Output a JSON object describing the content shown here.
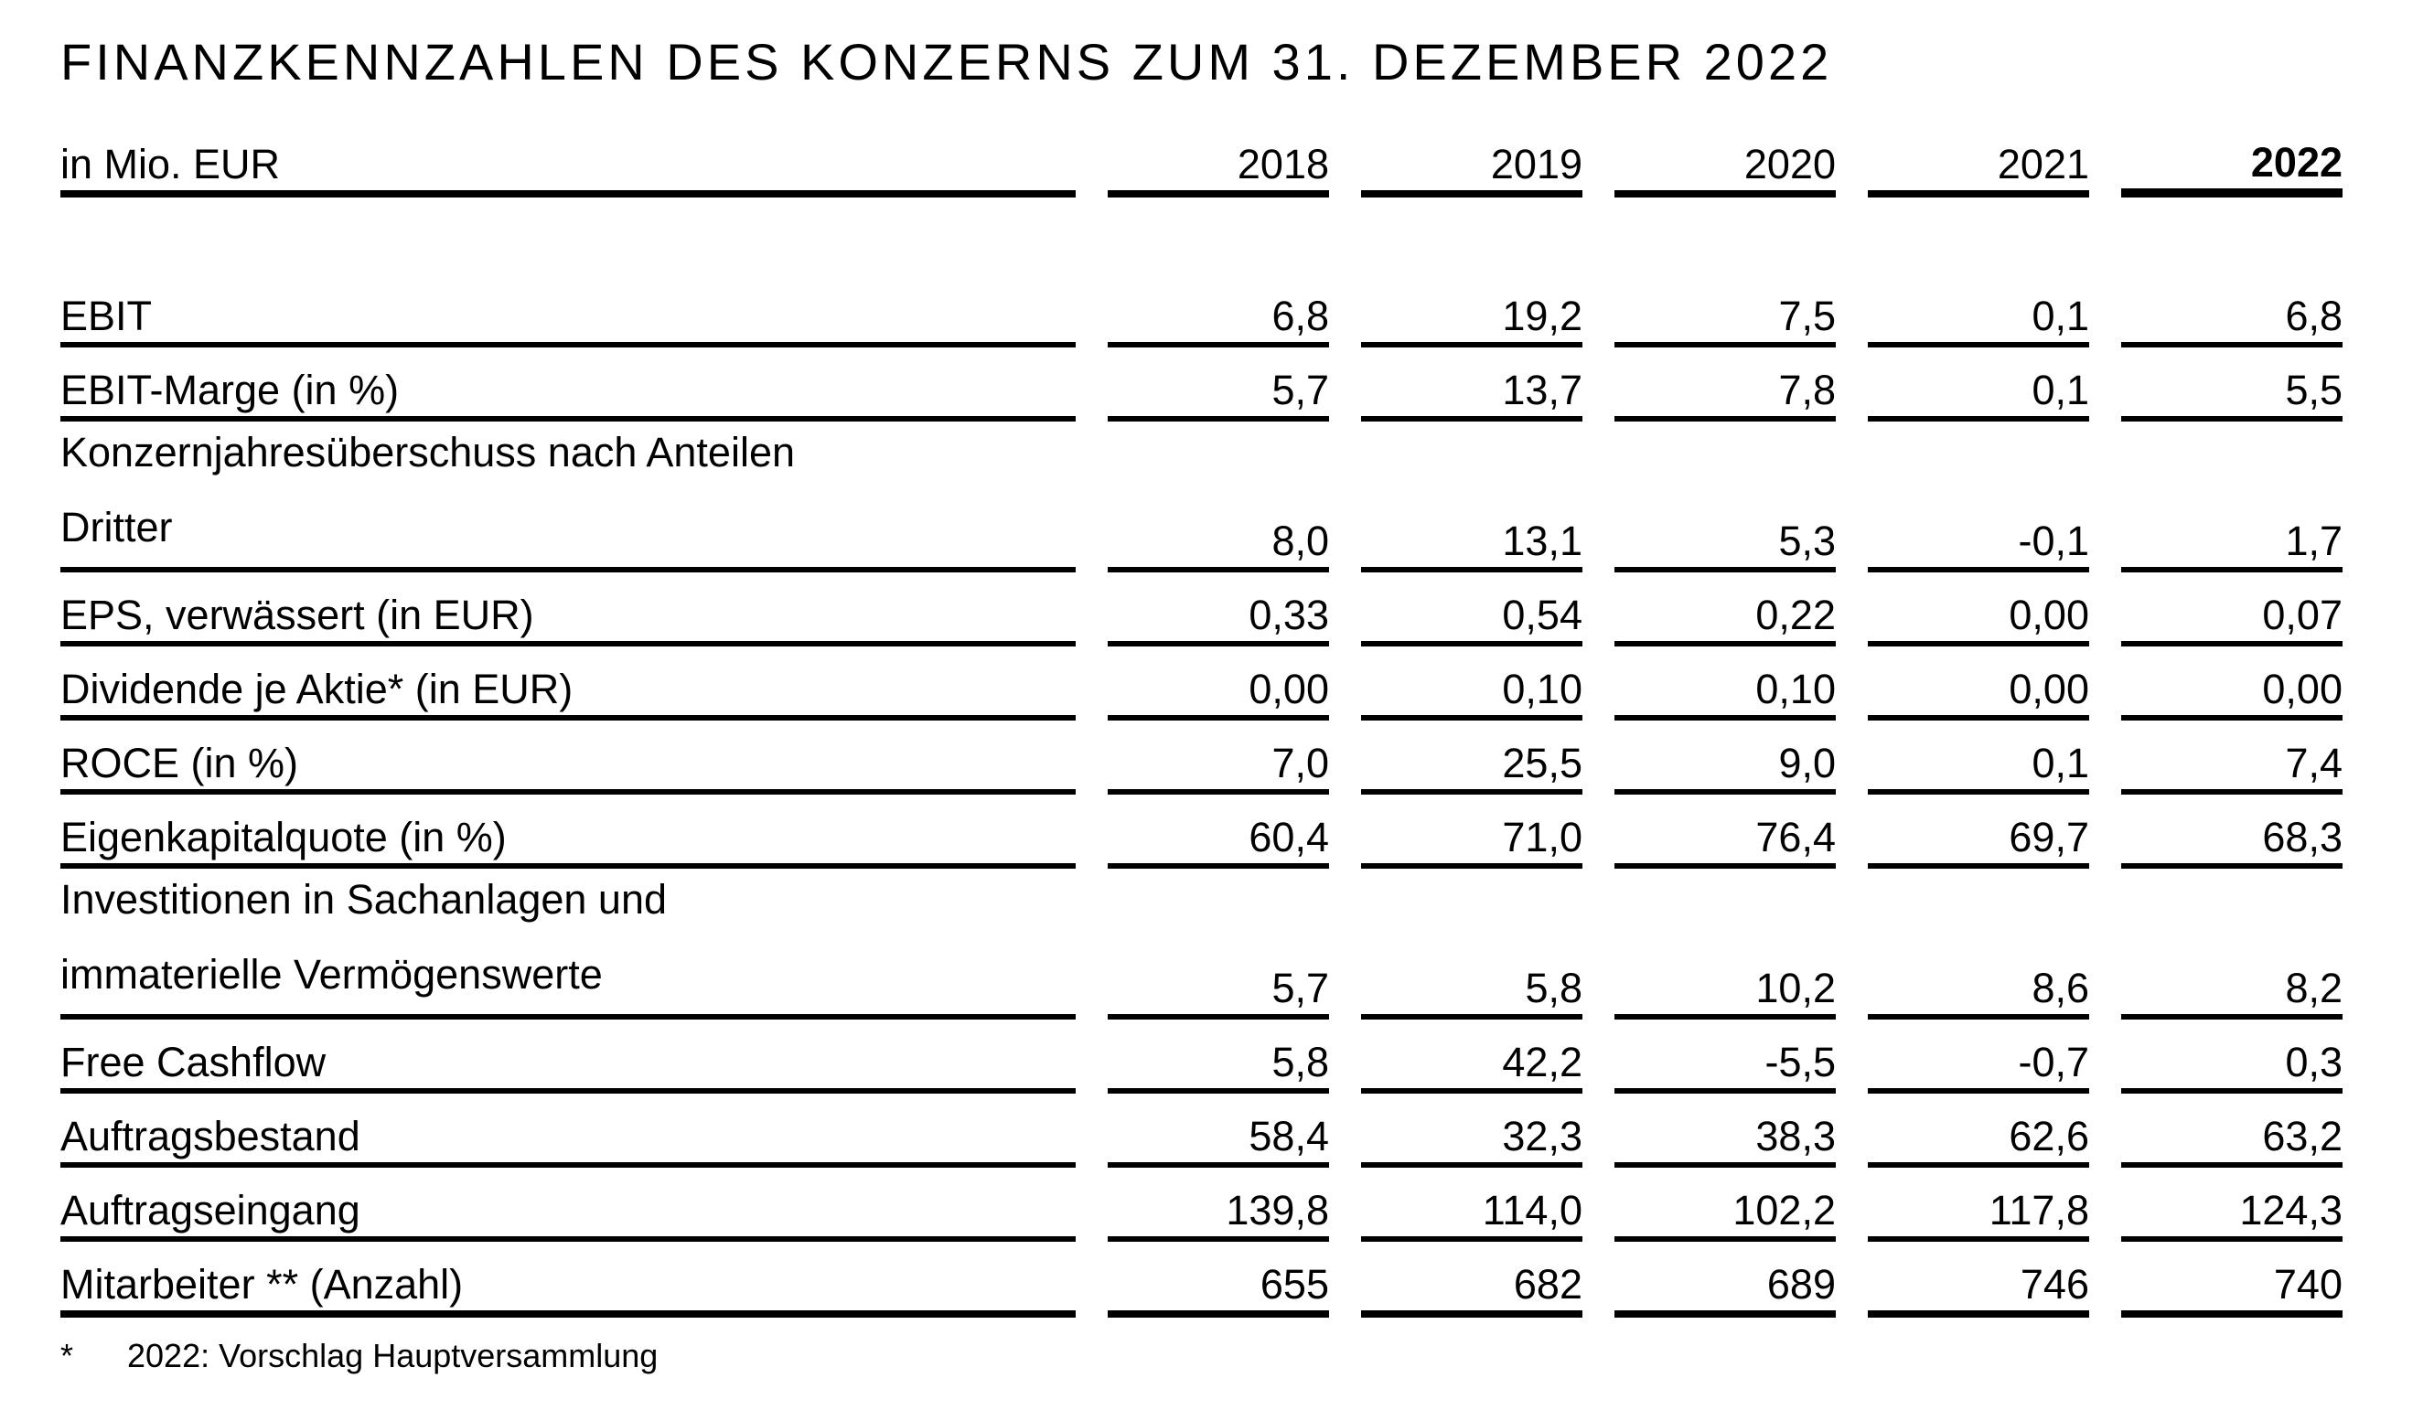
{
  "title": "FINANZKENNZAHLEN DES KONZERNS ZUM 31. DEZEMBER 2022",
  "table": {
    "unit_label": "in Mio. EUR",
    "years": [
      "2018",
      "2019",
      "2020",
      "2021",
      "2022"
    ],
    "highlighted_year": "2022",
    "rows": [
      {
        "label": "EBIT",
        "values": [
          "6,8",
          "19,2",
          "7,5",
          "0,1",
          "6,8"
        ]
      },
      {
        "label": "EBIT-Marge (in %)",
        "values": [
          "5,7",
          "13,7",
          "7,8",
          "0,1",
          "5,5"
        ]
      },
      {
        "label": "Konzernjahresüberschuss nach Anteilen\nDritter",
        "values": [
          "8,0",
          "13,1",
          "5,3",
          "-0,1",
          "1,7"
        ]
      },
      {
        "label": "EPS, verwässert (in EUR)",
        "values": [
          "0,33",
          "0,54",
          "0,22",
          "0,00",
          "0,07"
        ]
      },
      {
        "label": "Dividende je Aktie* (in EUR)",
        "values": [
          "0,00",
          "0,10",
          "0,10",
          "0,00",
          "0,00"
        ]
      },
      {
        "label": "ROCE (in %)",
        "values": [
          "7,0",
          "25,5",
          "9,0",
          "0,1",
          "7,4"
        ]
      },
      {
        "label": "Eigenkapitalquote (in %)",
        "values": [
          "60,4",
          "71,0",
          "76,4",
          "69,7",
          "68,3"
        ]
      },
      {
        "label": "Investitionen in Sachanlagen und\nimmaterielle Vermögenswerte",
        "values": [
          "5,7",
          "5,8",
          "10,2",
          "8,6",
          "8,2"
        ]
      },
      {
        "label": "Free Cashflow",
        "values": [
          "5,8",
          "42,2",
          "-5,5",
          "-0,7",
          "0,3"
        ]
      },
      {
        "label": "Auftragsbestand",
        "values": [
          "58,4",
          "32,3",
          "38,3",
          "62,6",
          "63,2"
        ]
      },
      {
        "label": "Auftragseingang",
        "values": [
          "139,8",
          "114,0",
          "102,2",
          "117,8",
          "124,3"
        ]
      },
      {
        "label": "Mitarbeiter ** (Anzahl)",
        "values": [
          "655",
          "682",
          "689",
          "746",
          "740"
        ]
      }
    ]
  },
  "footnote": {
    "marker": "*",
    "text": "2022: Vorschlag Hauptversammlung"
  },
  "colors": {
    "background": "#ffffff",
    "text": "#000000",
    "rule": "#000000"
  }
}
